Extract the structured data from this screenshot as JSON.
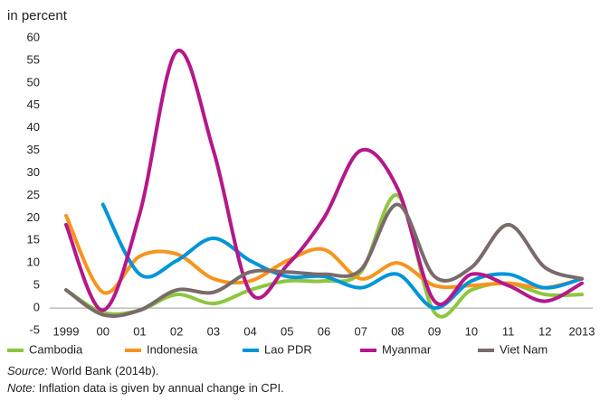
{
  "chart_data": {
    "type": "line",
    "y_axis_label": "in percent",
    "categories": [
      "1999",
      "00",
      "01",
      "02",
      "03",
      "04",
      "05",
      "06",
      "07",
      "08",
      "09",
      "10",
      "11",
      "12",
      "2013"
    ],
    "series": [
      {
        "name": "Cambodia",
        "color": "#8dc63f",
        "values": [
          4,
          -1,
          -0.5,
          3,
          1,
          4,
          6,
          6,
          8,
          25,
          -1,
          4,
          5.5,
          3,
          3
        ]
      },
      {
        "name": "Indonesia",
        "color": "#f7941d",
        "values": [
          20.5,
          3.5,
          11.5,
          12,
          6.5,
          6,
          10.5,
          13,
          6.5,
          10,
          5,
          5,
          5.5,
          4.5,
          6.5
        ]
      },
      {
        "name": "Lao PDR",
        "color": "#0095d9",
        "values": [
          null,
          23,
          7.5,
          10.5,
          15.5,
          10.5,
          7,
          7,
          4.5,
          7.5,
          0,
          6,
          7.5,
          4.5,
          6.5
        ]
      },
      {
        "name": "Myanmar",
        "color": "#b5178a",
        "values": [
          18.5,
          -0.5,
          21,
          57,
          35,
          3.5,
          9.5,
          20,
          35,
          26.5,
          1.5,
          7.5,
          5,
          1.5,
          5.5
        ]
      },
      {
        "name": "Viet Nam",
        "color": "#7a6a6a",
        "values": [
          4,
          -1.5,
          -0.5,
          4,
          3.5,
          8,
          8,
          7.5,
          8.5,
          23,
          7,
          9,
          18.5,
          9,
          6.5
        ]
      }
    ],
    "ylim": [
      -5,
      60
    ],
    "yticks": [
      -5,
      0,
      5,
      10,
      15,
      20,
      25,
      30,
      35,
      40,
      45,
      50,
      55,
      60
    ],
    "grid": false,
    "legend": "bottom",
    "source_label": "Source:",
    "source_text": "World Bank (2014b).",
    "note_label": "Note:",
    "note_text": "Inflation data is given by annual change in CPI."
  }
}
